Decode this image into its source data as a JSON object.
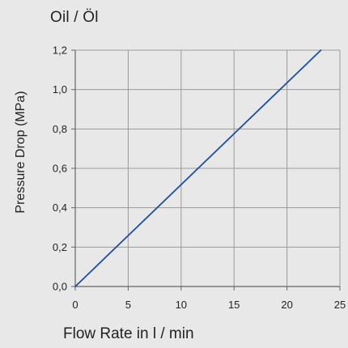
{
  "chart_data": {
    "type": "line",
    "title": "Oil / Öl",
    "xlabel": "Flow Rate in l / min",
    "ylabel": "Pressure Drop (MPa)",
    "xlim": [
      0,
      25
    ],
    "ylim": [
      0,
      1.2
    ],
    "xticks": [
      0,
      5,
      10,
      15,
      20,
      25
    ],
    "yticks": [
      0,
      0.2,
      0.4,
      0.6,
      0.8,
      1.0,
      1.2
    ],
    "xtick_labels": [
      "0",
      "5",
      "10",
      "15",
      "20",
      "25"
    ],
    "ytick_labels": [
      "0,0",
      "0,2",
      "0,4",
      "0,6",
      "0,8",
      "1,0",
      "1,2"
    ],
    "grid": true,
    "series": [
      {
        "x": [
          0,
          23.2
        ],
        "y": [
          0,
          1.2
        ],
        "color": "#1f4e9c"
      }
    ]
  },
  "colors": {
    "background": "#e8e8e8",
    "grid": "#9a9a9a",
    "axis": "#666666",
    "series": "#1f4e9c"
  }
}
